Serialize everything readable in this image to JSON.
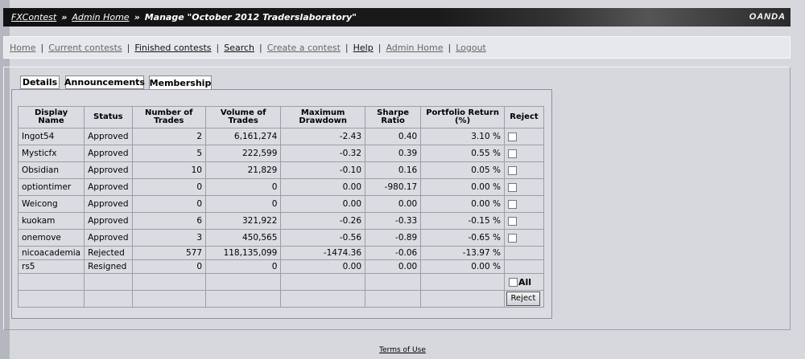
{
  "header": {
    "crumb1": "FXContest",
    "crumb2": "Admin Home",
    "title": "Manage \"October 2012 Traderslaboratory\"",
    "brand": "OANDA",
    "sep": "»"
  },
  "nav": {
    "items": [
      "Home",
      "Current contests",
      "Finished contests",
      "Search",
      "Create a contest",
      "Help",
      "Admin Home",
      "Logout"
    ],
    "bar": "|"
  },
  "tabs": [
    "Details",
    "Announcements",
    "Membership"
  ],
  "table": {
    "headers": [
      "Display Name",
      "Status",
      "Number of Trades",
      "Volume of Trades",
      "Maximum Drawdown",
      "Sharpe Ratio",
      "Portfolio Return (%)",
      "Reject"
    ],
    "rows": [
      {
        "name": "Ingot54",
        "status": "Approved",
        "trades": "2",
        "volume": "6,161,274",
        "drawdown": "-2.43",
        "sharpe": "0.40",
        "ret": "3.10 %",
        "reject": true
      },
      {
        "name": "Mysticfx",
        "status": "Approved",
        "trades": "5",
        "volume": "222,599",
        "drawdown": "-0.32",
        "sharpe": "0.39",
        "ret": "0.55 %",
        "reject": true
      },
      {
        "name": "Obsidian",
        "status": "Approved",
        "trades": "10",
        "volume": "21,829",
        "drawdown": "-0.10",
        "sharpe": "0.16",
        "ret": "0.05 %",
        "reject": true
      },
      {
        "name": "optiontimer",
        "status": "Approved",
        "trades": "0",
        "volume": "0",
        "drawdown": "0.00",
        "sharpe": "-980.17",
        "ret": "0.00 %",
        "reject": true
      },
      {
        "name": "Weicong",
        "status": "Approved",
        "trades": "0",
        "volume": "0",
        "drawdown": "0.00",
        "sharpe": "0.00",
        "ret": "0.00 %",
        "reject": true
      },
      {
        "name": "kuokam",
        "status": "Approved",
        "trades": "6",
        "volume": "321,922",
        "drawdown": "-0.26",
        "sharpe": "-0.33",
        "ret": "-0.15 %",
        "reject": true
      },
      {
        "name": "onemove",
        "status": "Approved",
        "trades": "3",
        "volume": "450,565",
        "drawdown": "-0.56",
        "sharpe": "-0.89",
        "ret": "-0.65 %",
        "reject": true
      },
      {
        "name": "nicoacademia",
        "status": "Rejected",
        "trades": "577",
        "volume": "118,135,099",
        "drawdown": "-1474.36",
        "sharpe": "-0.06",
        "ret": "-13.97 %",
        "reject": false
      },
      {
        "name": "rs5",
        "status": "Resigned",
        "trades": "0",
        "volume": "0",
        "drawdown": "0.00",
        "sharpe": "0.00",
        "ret": "0.00 %",
        "reject": false
      }
    ],
    "all_label": "All",
    "reject_button": "Reject"
  },
  "footer": "Terms of Use"
}
